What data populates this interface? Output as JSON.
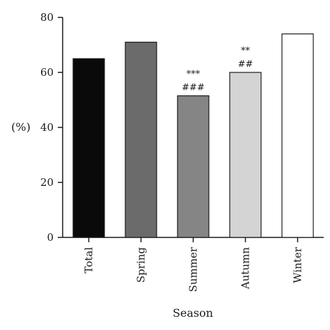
{
  "chart_data": {
    "type": "bar",
    "categories": [
      "Total",
      "Spring",
      "Summer",
      "Autumn",
      "Winter"
    ],
    "values": [
      65,
      71,
      51.5,
      60,
      74
    ],
    "bar_colors": [
      "#0a0a0a",
      "#6b6b6b",
      "#858585",
      "#d4d4d4",
      "#ffffff"
    ],
    "annotations": [
      {
        "category": "Summer",
        "lines": [
          "***",
          "###"
        ]
      },
      {
        "category": "Autumn",
        "lines": [
          "**",
          "##"
        ]
      }
    ],
    "xlabel": "Season",
    "ylabel": "(%)",
    "ylim": [
      0,
      80
    ],
    "yticks": [
      "0",
      "20",
      "40",
      "60",
      "80"
    ],
    "grid": false
  }
}
